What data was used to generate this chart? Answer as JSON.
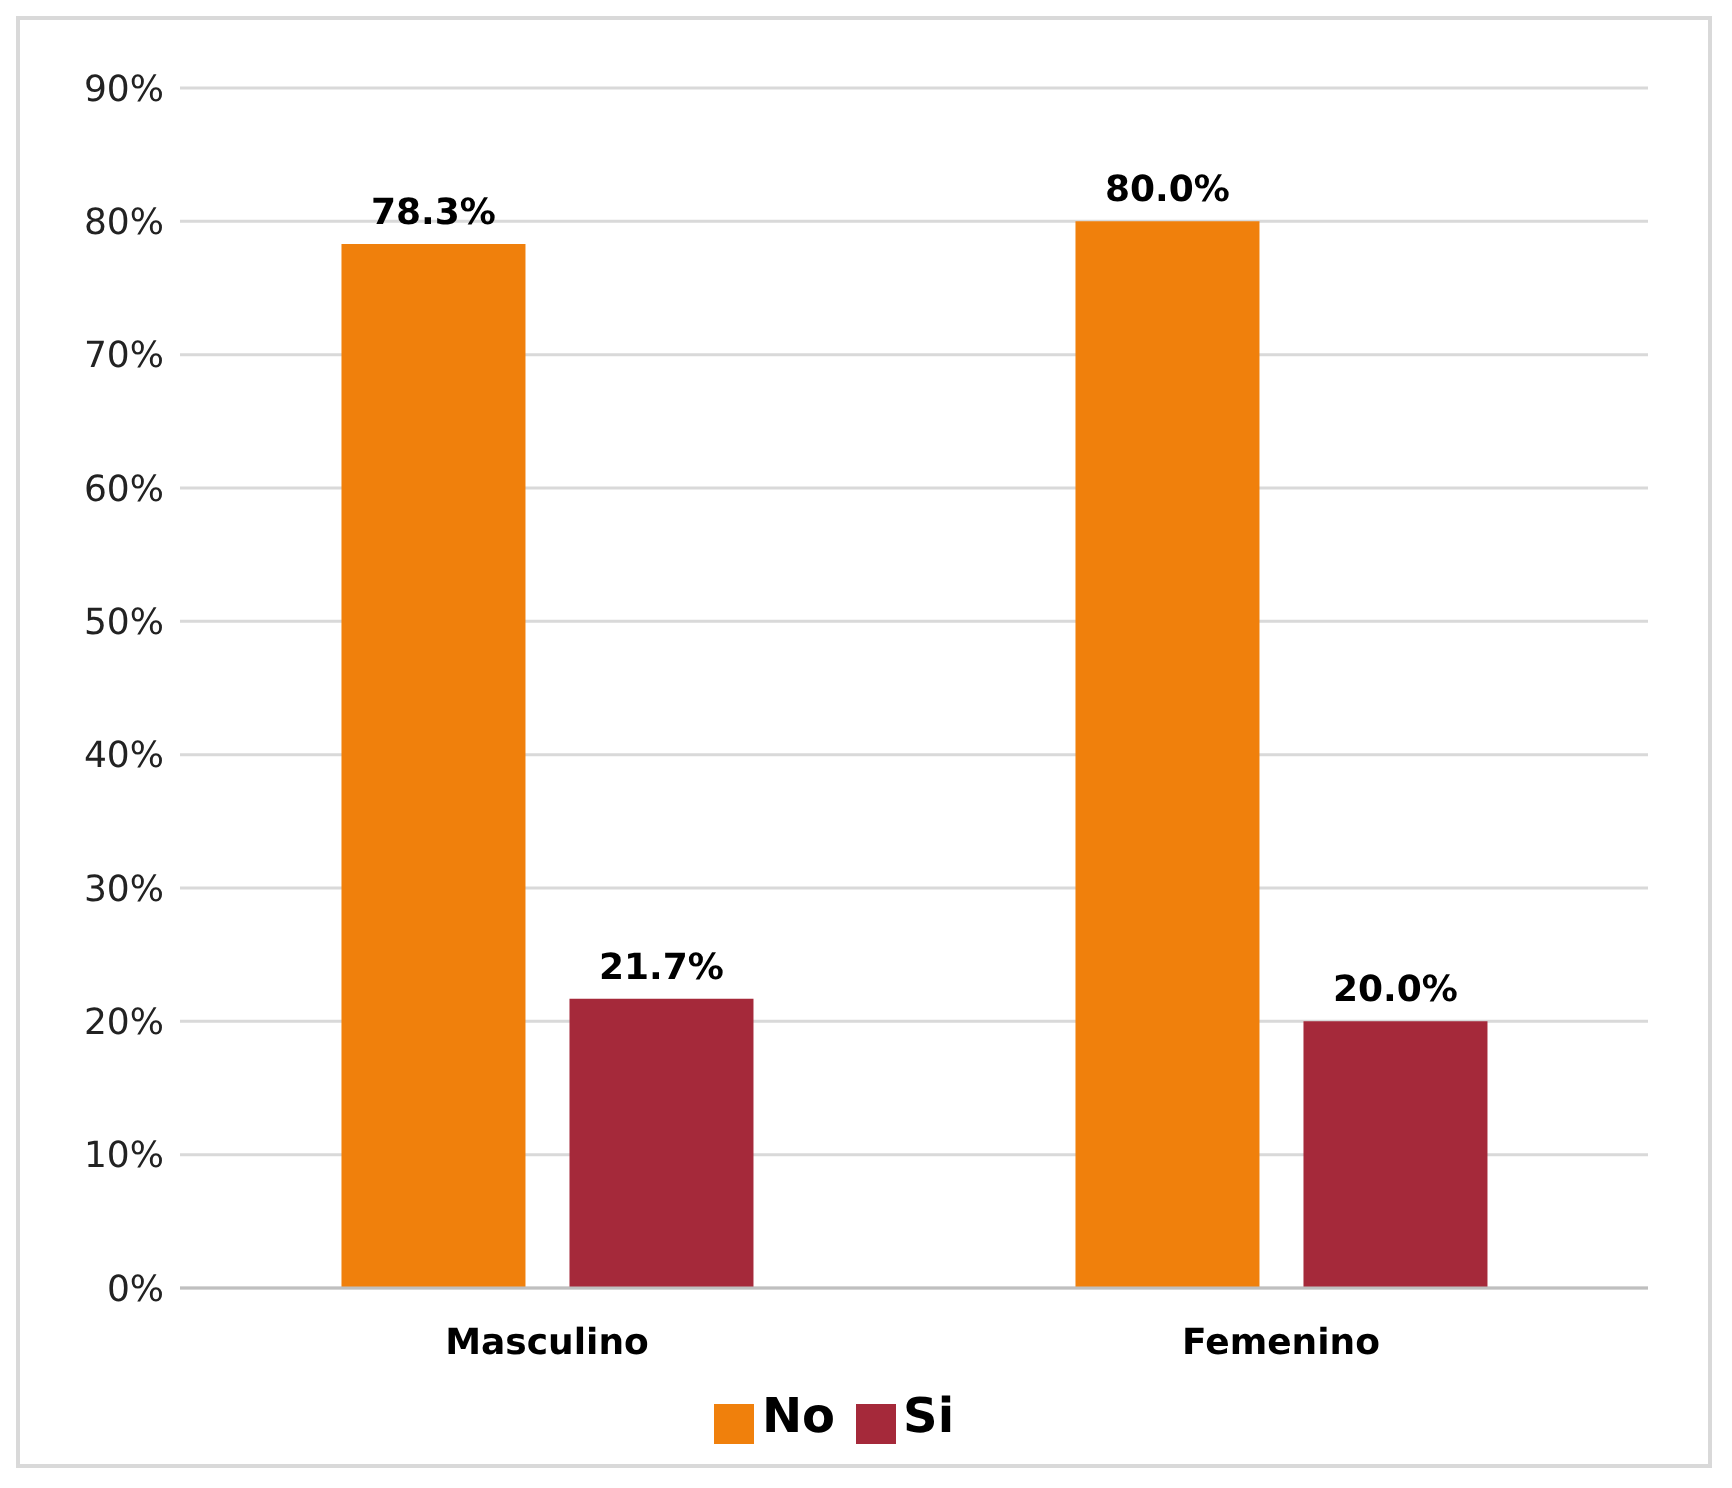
{
  "chart_data": {
    "type": "bar",
    "categories": [
      "Masculino",
      "Femenino"
    ],
    "series": [
      {
        "name": "No",
        "color": "#f0800c",
        "values": [
          78.3,
          80.0
        ],
        "value_labels": [
          "78.3%",
          "80.0%"
        ]
      },
      {
        "name": "Si",
        "color": "#a5293a",
        "values": [
          21.7,
          20.0
        ],
        "value_labels": [
          "21.7%",
          "20.0%"
        ]
      }
    ],
    "ylim": [
      0,
      90
    ],
    "yticks": [
      {
        "value": 0,
        "label": "0%"
      },
      {
        "value": 10,
        "label": "10%"
      },
      {
        "value": 20,
        "label": "20%"
      },
      {
        "value": 30,
        "label": "30%"
      },
      {
        "value": 40,
        "label": "40%"
      },
      {
        "value": 50,
        "label": "50%"
      },
      {
        "value": 60,
        "label": "60%"
      },
      {
        "value": 70,
        "label": "70%"
      },
      {
        "value": 80,
        "label": "80%"
      },
      {
        "value": 90,
        "label": "90%"
      }
    ],
    "grid": "y",
    "legend": "bottom"
  }
}
